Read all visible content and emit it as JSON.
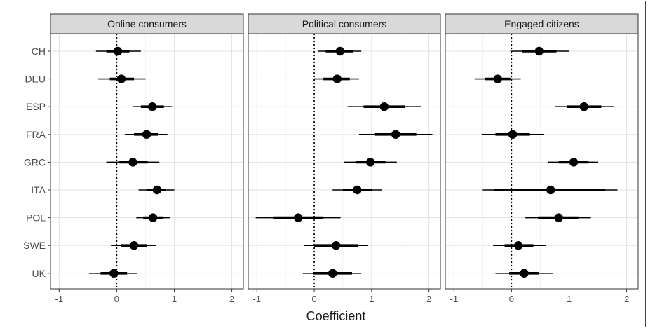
{
  "chart_data": {
    "type": "forest",
    "xlabel": "Coefficient",
    "ylabel": "",
    "categories": [
      "CH",
      "DEU",
      "ESP",
      "FRA",
      "GRC",
      "ITA",
      "POL",
      "SWE",
      "UK"
    ],
    "xlim": [
      -1.15,
      2.2
    ],
    "xticks": [
      "-1",
      "0",
      "1",
      "2"
    ],
    "reference_line": 0,
    "grid": true,
    "panels": [
      {
        "name": "Online consumers",
        "points": [
          {
            "estimate": 0.02,
            "inner": [
              -0.18,
              0.22
            ],
            "outer": [
              -0.36,
              0.42
            ]
          },
          {
            "estimate": 0.08,
            "inner": [
              -0.12,
              0.3
            ],
            "outer": [
              -0.32,
              0.5
            ]
          },
          {
            "estimate": 0.62,
            "inner": [
              0.42,
              0.82
            ],
            "outer": [
              0.28,
              0.96
            ]
          },
          {
            "estimate": 0.52,
            "inner": [
              0.3,
              0.72
            ],
            "outer": [
              0.14,
              0.88
            ]
          },
          {
            "estimate": 0.28,
            "inner": [
              0.04,
              0.54
            ],
            "outer": [
              -0.18,
              0.74
            ]
          },
          {
            "estimate": 0.7,
            "inner": [
              0.52,
              0.86
            ],
            "outer": [
              0.38,
              1.0
            ]
          },
          {
            "estimate": 0.63,
            "inner": [
              0.46,
              0.8
            ],
            "outer": [
              0.34,
              0.92
            ]
          },
          {
            "estimate": 0.3,
            "inner": [
              0.08,
              0.52
            ],
            "outer": [
              -0.1,
              0.68
            ]
          },
          {
            "estimate": -0.05,
            "inner": [
              -0.28,
              0.18
            ],
            "outer": [
              -0.48,
              0.36
            ]
          }
        ]
      },
      {
        "name": "Political consumers",
        "points": [
          {
            "estimate": 0.45,
            "inner": [
              0.2,
              0.68
            ],
            "outer": [
              0.06,
              0.82
            ]
          },
          {
            "estimate": 0.4,
            "inner": [
              0.16,
              0.62
            ],
            "outer": [
              0.0,
              0.78
            ]
          },
          {
            "estimate": 1.22,
            "inner": [
              0.86,
              1.58
            ],
            "outer": [
              0.58,
              1.86
            ]
          },
          {
            "estimate": 1.42,
            "inner": [
              1.06,
              1.78
            ],
            "outer": [
              0.78,
              2.06
            ]
          },
          {
            "estimate": 0.98,
            "inner": [
              0.72,
              1.24
            ],
            "outer": [
              0.52,
              1.44
            ]
          },
          {
            "estimate": 0.75,
            "inner": [
              0.5,
              1.0
            ],
            "outer": [
              0.32,
              1.18
            ]
          },
          {
            "estimate": -0.28,
            "inner": [
              -0.72,
              0.16
            ],
            "outer": [
              -1.02,
              0.46
            ]
          },
          {
            "estimate": 0.38,
            "inner": [
              0.0,
              0.76
            ],
            "outer": [
              -0.18,
              0.94
            ]
          },
          {
            "estimate": 0.32,
            "inner": [
              -0.02,
              0.66
            ],
            "outer": [
              -0.2,
              0.82
            ]
          }
        ]
      },
      {
        "name": "Engaged citizens",
        "points": [
          {
            "estimate": 0.48,
            "inner": [
              0.18,
              0.78
            ],
            "outer": [
              -0.02,
              1.0
            ]
          },
          {
            "estimate": -0.24,
            "inner": [
              -0.46,
              -0.02
            ],
            "outer": [
              -0.64,
              0.16
            ]
          },
          {
            "estimate": 1.26,
            "inner": [
              0.96,
              1.56
            ],
            "outer": [
              0.76,
              1.78
            ]
          },
          {
            "estimate": 0.02,
            "inner": [
              -0.28,
              0.32
            ],
            "outer": [
              -0.52,
              0.56
            ]
          },
          {
            "estimate": 1.08,
            "inner": [
              0.82,
              1.34
            ],
            "outer": [
              0.64,
              1.5
            ]
          },
          {
            "estimate": 0.68,
            "inner": [
              -0.3,
              1.62
            ],
            "outer": [
              -0.5,
              1.84
            ]
          },
          {
            "estimate": 0.82,
            "inner": [
              0.46,
              1.16
            ],
            "outer": [
              0.24,
              1.38
            ]
          },
          {
            "estimate": 0.12,
            "inner": [
              -0.12,
              0.38
            ],
            "outer": [
              -0.32,
              0.6
            ]
          },
          {
            "estimate": 0.22,
            "inner": [
              -0.04,
              0.48
            ],
            "outer": [
              -0.28,
              0.72
            ]
          }
        ]
      }
    ]
  }
}
